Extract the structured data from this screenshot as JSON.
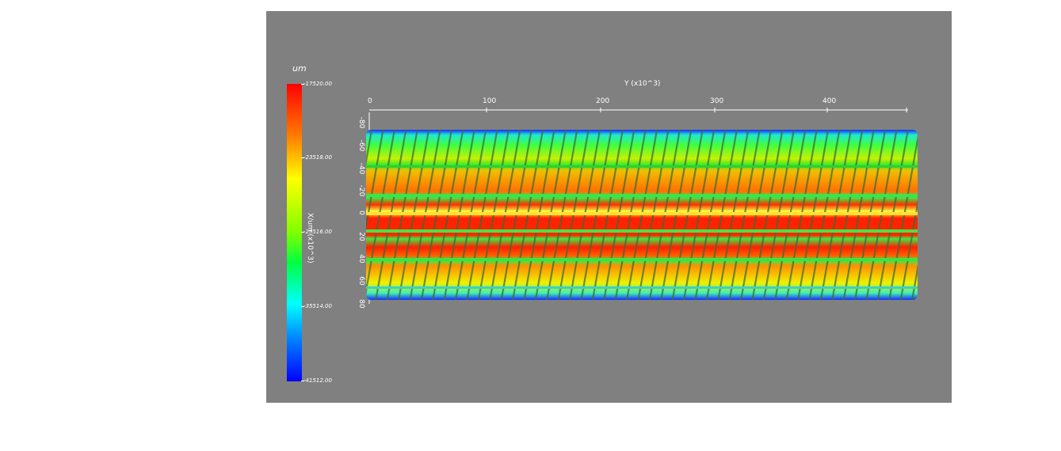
{
  "viewer": {
    "unit_label": "um",
    "colorbar": {
      "labels": [
        "-17520.00",
        "-23518.00",
        "-29516.00",
        "-35514.00",
        "-41512.00"
      ]
    },
    "y_axis": {
      "title": "Y (x10^3)",
      "ticks": [
        "0",
        "100",
        "200",
        "300",
        "400"
      ]
    },
    "x_axis": {
      "title": "X/um (x10^3)",
      "ticks": [
        "-80",
        "-60",
        "-40",
        "-20",
        "0",
        "20",
        "40",
        "60",
        "80"
      ]
    },
    "background_color": "#808080"
  }
}
